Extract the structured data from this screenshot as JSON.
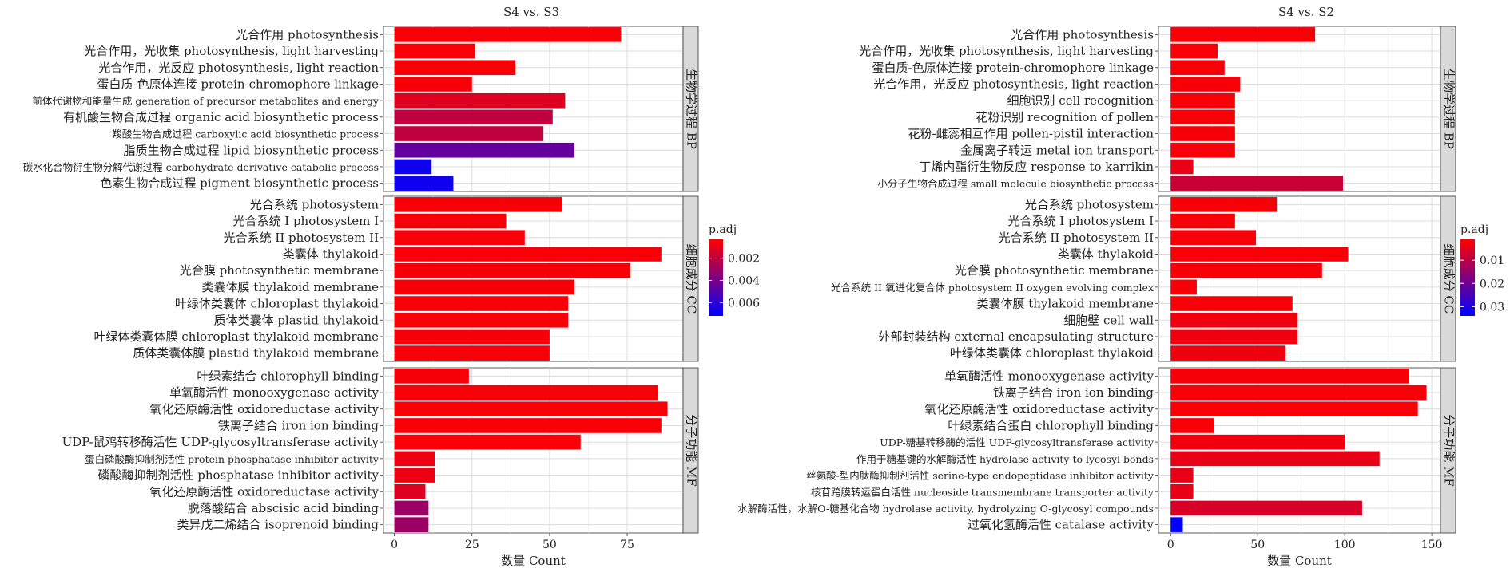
{
  "chart_data": [
    {
      "type": "bar",
      "orientation": "horizontal",
      "title": "S4 vs. S3",
      "xlabel": "数量 Count",
      "x_ticks": [
        0,
        25,
        50,
        75
      ],
      "xlim": [
        -3.5,
        93
      ],
      "grid": true,
      "color_legend": {
        "title": "p.adj",
        "ticks": [
          0.002,
          0.004,
          0.006
        ],
        "range": [
          0.0003,
          0.0072
        ]
      },
      "facets": [
        {
          "label": "生物学过程 BP",
          "categories": [
            "光合作用 photosynthesis",
            "光合作用，光收集 photosynthesis, light harvesting",
            "光合作用，光反应 photosynthesis, light reaction",
            "蛋白质-色原体连接 protein-chromophore linkage",
            "前体代谢物和能量生成 generation of precursor metabolites and energy",
            "有机酸生物合成过程 organic acid biosynthetic process",
            "羧酸生物合成过程 carboxylic acid biosynthetic process",
            "脂质生物合成过程 lipid biosynthetic process",
            "碳水化合物衍生物分解代谢过程 carbohydrate derivative catabolic process",
            "色素生物合成过程 pigment biosynthetic process"
          ],
          "values": [
            73,
            26,
            39,
            25,
            55,
            51,
            48,
            58,
            12,
            19
          ],
          "p_adj": [
            0.0005,
            0.0005,
            0.0005,
            0.0005,
            0.0012,
            0.002,
            0.002,
            0.0045,
            0.0068,
            0.0068
          ]
        },
        {
          "label": "细胞成分 CC",
          "categories": [
            "光合系统 photosystem",
            "光合系统 I photosystem I",
            "光合系统 II photosystem II",
            "类囊体 thylakoid",
            "光合膜 photosynthetic membrane",
            "类囊体膜 thylakoid membrane",
            "叶绿体类囊体 chloroplast thylakoid",
            "质体类囊体 plastid thylakoid",
            "叶绿体类囊体膜 chloroplast thylakoid membrane",
            "质体类囊体膜 plastid thylakoid membrane"
          ],
          "values": [
            54,
            36,
            42,
            86,
            76,
            58,
            56,
            56,
            50,
            50
          ],
          "p_adj": [
            0.0005,
            0.0005,
            0.0005,
            0.0005,
            0.0005,
            0.0005,
            0.0005,
            0.0005,
            0.0005,
            0.0005
          ]
        },
        {
          "label": "分子功能 MF",
          "categories": [
            "叶绿素结合 chlorophyll binding",
            "单氧酶活性 monooxygenase activity",
            "氧化还原酶活性 oxidoreductase activity",
            "铁离子结合 iron ion binding",
            "UDP-鼠鸡转移酶活性 UDP-glycosyltransferase activity",
            "蛋白磷酸酶抑制剂活性 protein phosphatase inhibitor activity",
            "磷酸酶抑制剂活性 phosphatase inhibitor activity",
            "氧化还原酶活性 oxidoreductase activity",
            "脱落酸结合 abscisic acid binding",
            "类异戊二烯结合 isoprenoid binding"
          ],
          "values": [
            24,
            85,
            88,
            86,
            60,
            13,
            13,
            10,
            11,
            11
          ],
          "p_adj": [
            0.0005,
            0.0005,
            0.0005,
            0.0005,
            0.0005,
            0.0008,
            0.0008,
            0.0012,
            0.003,
            0.003
          ]
        }
      ]
    },
    {
      "type": "bar",
      "orientation": "horizontal",
      "title": "S4 vs. S2",
      "xlabel": "数量 Count",
      "x_ticks": [
        0,
        50,
        100,
        150
      ],
      "xlim": [
        -7,
        155
      ],
      "grid": true,
      "color_legend": {
        "title": "p.adj",
        "ticks": [
          0.01,
          0.02,
          0.03
        ],
        "range": [
          0.001,
          0.034
        ]
      },
      "facets": [
        {
          "label": "生物学过程 BP",
          "categories": [
            "光合作用 photosynthesis",
            "光合作用，光收集 photosynthesis, light harvesting",
            "蛋白质-色原体连接 protein-chromophore linkage",
            "光合作用，光反应 photosynthesis, light reaction",
            "细胞识别 cell recognition",
            "花粉识别 recognition of pollen",
            "花粉-雌蕊相互作用 pollen-pistil interaction",
            "金属离子转运 metal ion transport",
            "丁烯内酯衍生物反应 response to karrikin",
            "小分子生物合成过程 small molecule biosynthetic process"
          ],
          "values": [
            83,
            27,
            31,
            40,
            37,
            37,
            37,
            37,
            13,
            99
          ],
          "p_adj": [
            0.002,
            0.002,
            0.002,
            0.002,
            0.002,
            0.002,
            0.002,
            0.002,
            0.004,
            0.008
          ]
        },
        {
          "label": "细胞成分 CC",
          "categories": [
            "光合系统 photosystem",
            "光合系统 I photosystem I",
            "光合系统 II photosystem II",
            "类囊体 thylakoid",
            "光合膜 photosynthetic membrane",
            "光合系统 II 氧进化复合体 photosystem II oxygen evolving complex",
            "类囊体膜 thylakoid membrane",
            "细胞壁 cell wall",
            "外部封装结构 external encapsulating structure",
            "叶绿体类囊体 chloroplast thylakoid"
          ],
          "values": [
            61,
            37,
            49,
            102,
            87,
            15,
            70,
            73,
            73,
            66
          ],
          "p_adj": [
            0.002,
            0.002,
            0.002,
            0.002,
            0.002,
            0.002,
            0.002,
            0.003,
            0.003,
            0.003
          ]
        },
        {
          "label": "分子功能 MF",
          "categories": [
            "单氧酶活性 monooxygenase activity",
            "铁离子结合 iron ion binding",
            "氧化还原酶活性 oxidoreductase activity",
            "叶绿素结合蛋白 chlorophyll binding",
            "UDP-糖基转移酶的活性 UDP-glycosyltransferase activity",
            "作用于糖基键的水解酶活性 hydrolase activity to lycosyl bonds",
            "丝氨酸-型内肽酶抑制剂活性 serine-type endopeptidase inhibitor activity",
            "核苷跨膜转运蛋白活性 nucleoside transmembrane transporter activity",
            "水解酶活性，水解O-糖基化合物 hydrolase activity, hydrolyzing O-glycosyl compounds",
            "过氧化氢酶活性 catalase activity"
          ],
          "values": [
            137,
            147,
            142,
            25,
            100,
            120,
            13,
            13,
            110,
            7
          ],
          "p_adj": [
            0.002,
            0.002,
            0.002,
            0.002,
            0.003,
            0.004,
            0.004,
            0.004,
            0.006,
            0.034
          ]
        }
      ]
    }
  ]
}
